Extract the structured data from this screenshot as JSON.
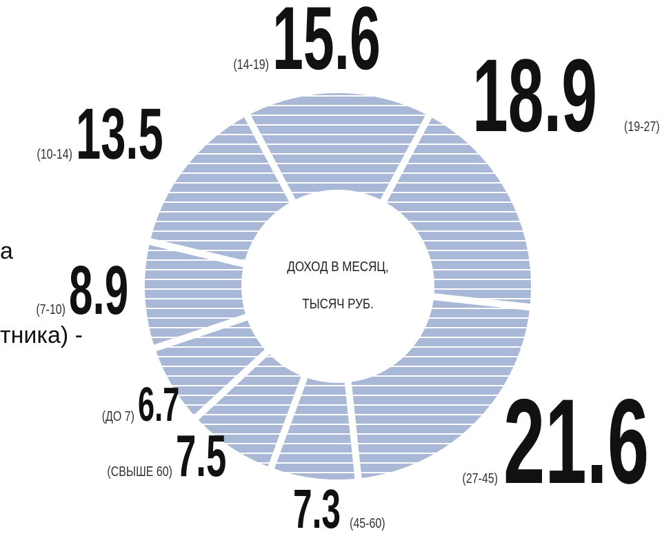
{
  "chart_data": {
    "type": "donut",
    "center_text": [
      "ДОХОД В МЕСЯЦ,",
      "ТЫСЯЧ РУБ."
    ],
    "categories": [
      "(14-19)",
      "(19-27)",
      "(27-45)",
      "(45-60)",
      "(СВЫШЕ 60)",
      "(ДО 7)",
      "(7-10)",
      "(10-14)"
    ],
    "values": [
      15.6,
      18.9,
      21.6,
      7.3,
      7.5,
      6.7,
      8.9,
      13.5
    ],
    "color": "#a9b8d6",
    "background_text": [
      "а",
      "тника) -"
    ]
  }
}
